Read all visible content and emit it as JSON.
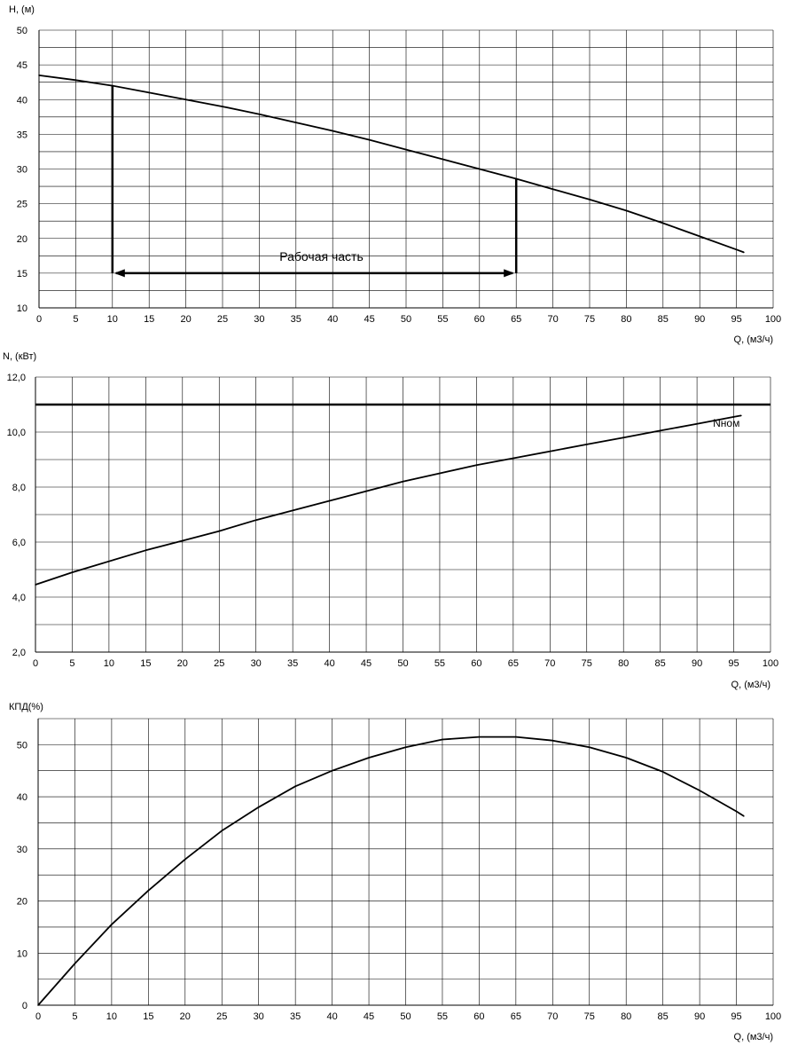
{
  "chart_data": [
    {
      "type": "line",
      "ylabel": "H, (м)",
      "xlabel": "Q, (м3/ч)",
      "xlim": [
        0,
        100
      ],
      "ylim": [
        10,
        50
      ],
      "xticks": [
        0,
        5,
        10,
        15,
        20,
        25,
        30,
        35,
        40,
        45,
        50,
        55,
        60,
        65,
        70,
        75,
        80,
        85,
        90,
        95,
        100
      ],
      "yticks": [
        "10",
        "15",
        "20",
        "25",
        "30",
        "35",
        "40",
        "45",
        "50"
      ],
      "grid": true,
      "series": [
        {
          "x": [
            0,
            5,
            10,
            15,
            20,
            25,
            30,
            35,
            40,
            45,
            50,
            55,
            60,
            65,
            70,
            75,
            80,
            85,
            90,
            95,
            96
          ],
          "values": [
            43.5,
            42.8,
            42.0,
            41.0,
            40.0,
            39.0,
            37.9,
            36.7,
            35.5,
            34.2,
            32.8,
            31.4,
            30.0,
            28.6,
            27.1,
            25.6,
            24.0,
            22.2,
            20.3,
            18.4,
            18.0
          ]
        }
      ],
      "annotations": {
        "working_range_label": "Рабочая часть",
        "working_range_q": [
          10,
          65
        ],
        "working_range_h": 15
      }
    },
    {
      "type": "line",
      "ylabel": "N, (кВт)",
      "xlabel": "Q, (м3/ч)",
      "xlim": [
        0,
        100
      ],
      "ylim": [
        2,
        12
      ],
      "xticks": [
        0,
        5,
        10,
        15,
        20,
        25,
        30,
        35,
        40,
        45,
        50,
        55,
        60,
        65,
        70,
        75,
        80,
        85,
        90,
        95,
        100
      ],
      "yticks": [
        "2,0",
        "4,0",
        "6,0",
        "8,0",
        "10,0",
        "12,0"
      ],
      "grid": true,
      "series": [
        {
          "x": [
            0,
            5,
            10,
            15,
            20,
            25,
            30,
            35,
            40,
            45,
            50,
            55,
            60,
            65,
            70,
            75,
            80,
            85,
            90,
            95,
            96
          ],
          "values": [
            4.45,
            4.9,
            5.3,
            5.7,
            6.05,
            6.4,
            6.8,
            7.15,
            7.5,
            7.85,
            8.2,
            8.5,
            8.8,
            9.05,
            9.3,
            9.55,
            9.8,
            10.05,
            10.3,
            10.55,
            10.6
          ]
        }
      ],
      "reference_line": {
        "label": "Nном",
        "value": 11.0
      }
    },
    {
      "type": "line",
      "ylabel": "КПД(%)",
      "xlabel": "Q, (м3/ч)",
      "xlim": [
        0,
        100
      ],
      "ylim": [
        0,
        55
      ],
      "xticks": [
        0,
        5,
        10,
        15,
        20,
        25,
        30,
        35,
        40,
        45,
        50,
        55,
        60,
        65,
        70,
        75,
        80,
        85,
        90,
        95,
        100
      ],
      "yticks": [
        "0",
        "10",
        "20",
        "30",
        "40",
        "50"
      ],
      "grid": true,
      "series": [
        {
          "x": [
            0,
            5,
            10,
            15,
            20,
            25,
            30,
            35,
            40,
            45,
            50,
            55,
            60,
            65,
            70,
            75,
            80,
            85,
            90,
            95,
            96
          ],
          "values": [
            0,
            8.0,
            15.5,
            22.0,
            28.0,
            33.5,
            38.0,
            42.0,
            45.0,
            47.5,
            49.5,
            51.0,
            51.5,
            51.5,
            50.8,
            49.5,
            47.5,
            44.8,
            41.2,
            37.2,
            36.3
          ]
        }
      ]
    }
  ]
}
